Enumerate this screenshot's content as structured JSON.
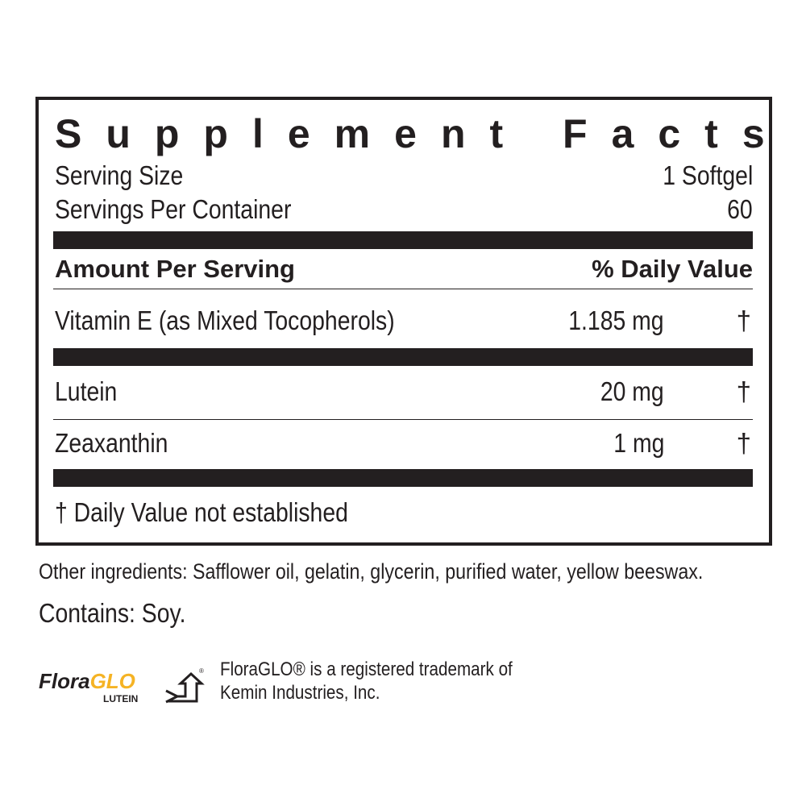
{
  "title": "Supplement Facts",
  "serving_size": {
    "label": "Serving Size",
    "value": "1 Softgel"
  },
  "servings_per_container": {
    "label": "Servings Per Container",
    "value": "60"
  },
  "header": {
    "amount": "Amount Per Serving",
    "dv": "% Daily Value"
  },
  "nutrients": [
    {
      "name": "Vitamin E (as Mixed Tocopherols)",
      "amount": "1.185 mg",
      "dv": "†"
    },
    {
      "name": "Lutein",
      "amount": "20 mg",
      "dv": "†"
    },
    {
      "name": "Zeaxanthin",
      "amount": "1 mg",
      "dv": "†"
    }
  ],
  "footnote": "† Daily Value not established",
  "other_ingredients": "Other ingredients: Safflower oil, gelatin, glycerin, purified water, yellow beeswax.",
  "contains": "Contains: Soy.",
  "logo": {
    "brand_a": "Flora",
    "brand_b": "GLO",
    "sub": "LUTEIN",
    "reg": "®",
    "accent": "#f5b324"
  },
  "trademark": {
    "line1": "FloraGLO® is a registered trademark of",
    "line2": "Kemin Industries, Inc."
  }
}
